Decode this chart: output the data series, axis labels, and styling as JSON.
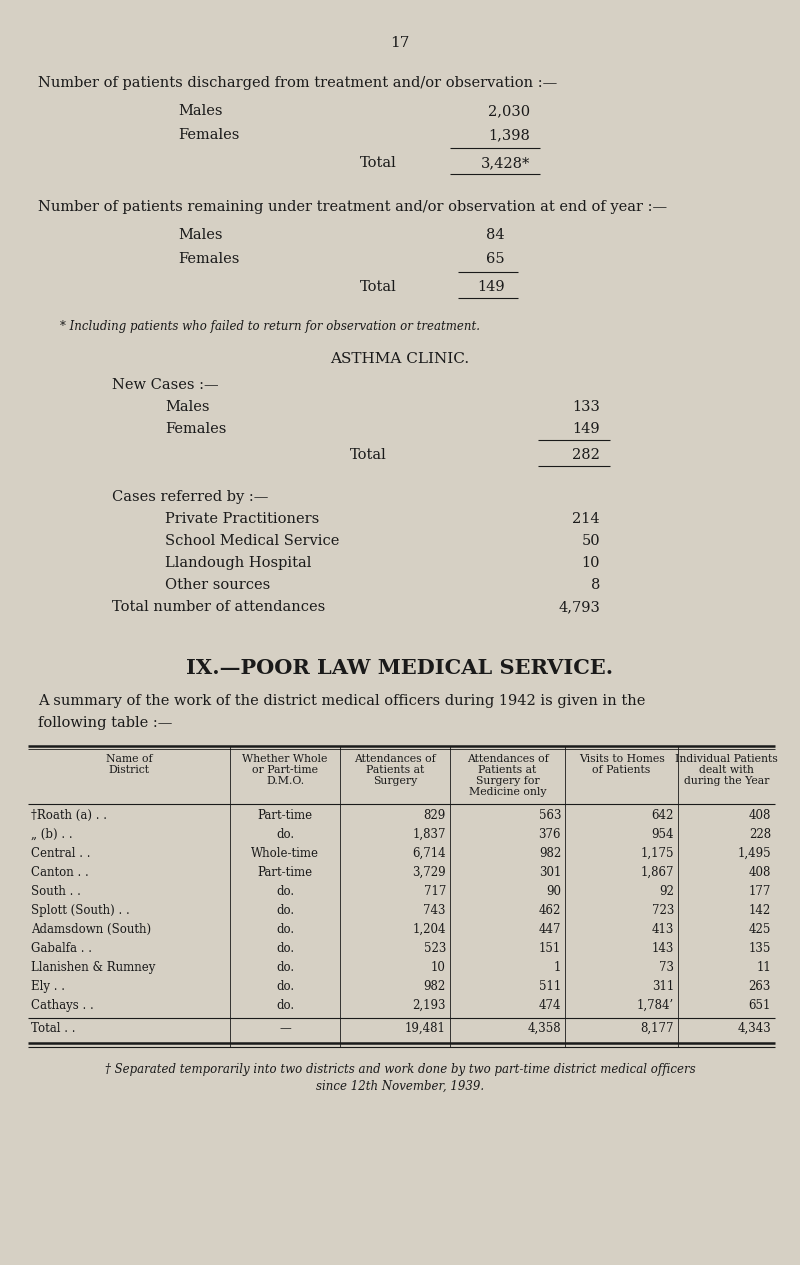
{
  "bg_color": "#d6d0c4",
  "text_color": "#1a1a1a",
  "page_number": "17",
  "section1_title": "Number of patients discharged from treatment and/or observation :—",
  "section1_rows": [
    [
      "Males",
      "2,030"
    ],
    [
      "Females",
      "1,398"
    ]
  ],
  "section1_total_label": "Total",
  "section1_total_value": "3,428*",
  "section2_title": "Number of patients remaining under treatment and/or observation at end of year :—",
  "section2_rows": [
    [
      "Males",
      "84"
    ],
    [
      "Females",
      "65"
    ]
  ],
  "section2_total_label": "Total",
  "section2_total_value": "149",
  "footnote1": "* Including patients who failed to return for observation or treatment.",
  "asthma_title": "ASTHMA CLINIC.",
  "asthma_new_cases_label": "New Cases :—",
  "asthma_new_cases": [
    [
      "Males",
      "133"
    ],
    [
      "Females",
      "149"
    ]
  ],
  "asthma_total_label": "Total",
  "asthma_total_value": "282",
  "asthma_referred_label": "Cases referred by :—",
  "asthma_referred": [
    [
      "Private Practitioners",
      "214"
    ],
    [
      "School Medical Service",
      "50"
    ],
    [
      "Llandough Hospital",
      "10"
    ],
    [
      "Other sources",
      "8"
    ]
  ],
  "asthma_attendances_label": "Total number of attendances",
  "asthma_attendances_value": "4,793",
  "poor_law_title": "IX.—POOR LAW MEDICAL SERVICE.",
  "poor_law_intro": "A summary of the work of the district medical officers during 1942 is given in the\nfollowing table :—",
  "table_headers": [
    "Name of\nDistrict",
    "Whether Whole\nor Part-time\nD.M.O.",
    "Attendances of\nPatients at\nSurgery",
    "Attendances of\nPatients at\nSurgery for\nMedicine only",
    "Visits to Homes\nof Patients",
    "Individual Patients\ndealt with\nduring the Year"
  ],
  "table_rows": [
    [
      "†Roath (a) . .",
      "Part-time",
      "829",
      "563",
      "642",
      "408"
    ],
    [
      "„ (b) . .",
      "do.",
      "1,837",
      "376",
      "954",
      "228"
    ],
    [
      "Central . .",
      "Whole-time",
      "6,714",
      "982",
      "1,175",
      "1,495"
    ],
    [
      "Canton . .",
      "Part-time",
      "3,729",
      "301",
      "1,867",
      "408"
    ],
    [
      "South . .",
      "do.",
      "717",
      "90",
      "92",
      "177"
    ],
    [
      "Splott (South) . .",
      "do.",
      "743",
      "462",
      "723",
      "142"
    ],
    [
      "Adamsdown (South)",
      "do.",
      "1,204",
      "447",
      "413",
      "425"
    ],
    [
      "Gabalfa . .",
      "do.",
      "523",
      "151",
      "143",
      "135"
    ],
    [
      "Llanishen & Rumney",
      "do.",
      "10",
      "1",
      "73",
      "11"
    ],
    [
      "Ely . .",
      "do.",
      "982",
      "511",
      "311",
      "263"
    ],
    [
      "Cathays . .",
      "do.",
      "2,193",
      "474",
      "1,784’",
      "651"
    ]
  ],
  "table_total": [
    "Total . .",
    "—",
    "19,481",
    "4,358",
    "8,177",
    "4,343"
  ],
  "footnote2": "† Separated temporarily into two districts and work done by two part-time district medical officers\nsince 12th November, 1939."
}
